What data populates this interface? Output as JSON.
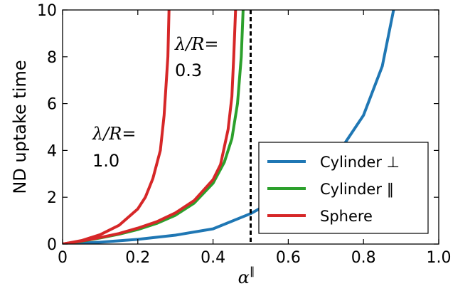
{
  "chart_data": {
    "type": "line",
    "ylabel": "ND uptake time",
    "xlabel": "α",
    "xlabel_superscript": "∥",
    "xlim": [
      0,
      1
    ],
    "ylim": [
      0,
      10
    ],
    "x_ticks": [
      "0",
      "0.2",
      "0.4",
      "0.6",
      "0.8",
      "1.0"
    ],
    "y_ticks": [
      "0",
      "2",
      "4",
      "6",
      "8",
      "10"
    ],
    "grid": false,
    "legend_position": "lower-right",
    "vline": {
      "x": 0.5,
      "style": "dashed",
      "color": "#000000"
    },
    "annotations": [
      {
        "label": "λ/R=",
        "value": "1.0"
      },
      {
        "label": "λ/R=",
        "value": "0.3"
      }
    ],
    "series": [
      {
        "name": "Cylinder ⊥",
        "color": "#1f77b4",
        "points": [
          [
            0,
            0
          ],
          [
            0.1,
            0.08
          ],
          [
            0.2,
            0.2
          ],
          [
            0.3,
            0.38
          ],
          [
            0.4,
            0.65
          ],
          [
            0.5,
            1.3
          ],
          [
            0.6,
            2.2
          ],
          [
            0.7,
            3.4
          ],
          [
            0.75,
            4.3
          ],
          [
            0.8,
            5.5
          ],
          [
            0.85,
            7.6
          ],
          [
            0.88,
            10
          ]
        ]
      },
      {
        "name": "Cylinder ∥",
        "color": "#2ca02c",
        "points": [
          [
            0,
            0
          ],
          [
            0.05,
            0.12
          ],
          [
            0.1,
            0.26
          ],
          [
            0.15,
            0.42
          ],
          [
            0.2,
            0.62
          ],
          [
            0.25,
            0.88
          ],
          [
            0.3,
            1.23
          ],
          [
            0.35,
            1.75
          ],
          [
            0.4,
            2.6
          ],
          [
            0.43,
            3.5
          ],
          [
            0.45,
            4.5
          ],
          [
            0.465,
            6
          ],
          [
            0.475,
            8
          ],
          [
            0.48,
            10
          ]
        ]
      },
      {
        "name": "Sphere",
        "color": "#d62728",
        "points": [
          [
            0,
            0
          ],
          [
            0.05,
            0.13
          ],
          [
            0.1,
            0.28
          ],
          [
            0.15,
            0.45
          ],
          [
            0.2,
            0.68
          ],
          [
            0.25,
            0.95
          ],
          [
            0.3,
            1.33
          ],
          [
            0.35,
            1.86
          ],
          [
            0.4,
            2.75
          ],
          [
            0.42,
            3.4
          ],
          [
            0.44,
            4.9
          ],
          [
            0.45,
            6.3
          ],
          [
            0.455,
            8
          ],
          [
            0.46,
            10
          ]
        ]
      },
      {
        "name": "",
        "color": "#d62728",
        "points": [
          [
            0,
            0
          ],
          [
            0.05,
            0.15
          ],
          [
            0.1,
            0.4
          ],
          [
            0.15,
            0.8
          ],
          [
            0.2,
            1.5
          ],
          [
            0.22,
            2
          ],
          [
            0.24,
            2.8
          ],
          [
            0.26,
            4
          ],
          [
            0.27,
            5.5
          ],
          [
            0.28,
            8
          ],
          [
            0.283,
            10
          ]
        ]
      }
    ]
  }
}
